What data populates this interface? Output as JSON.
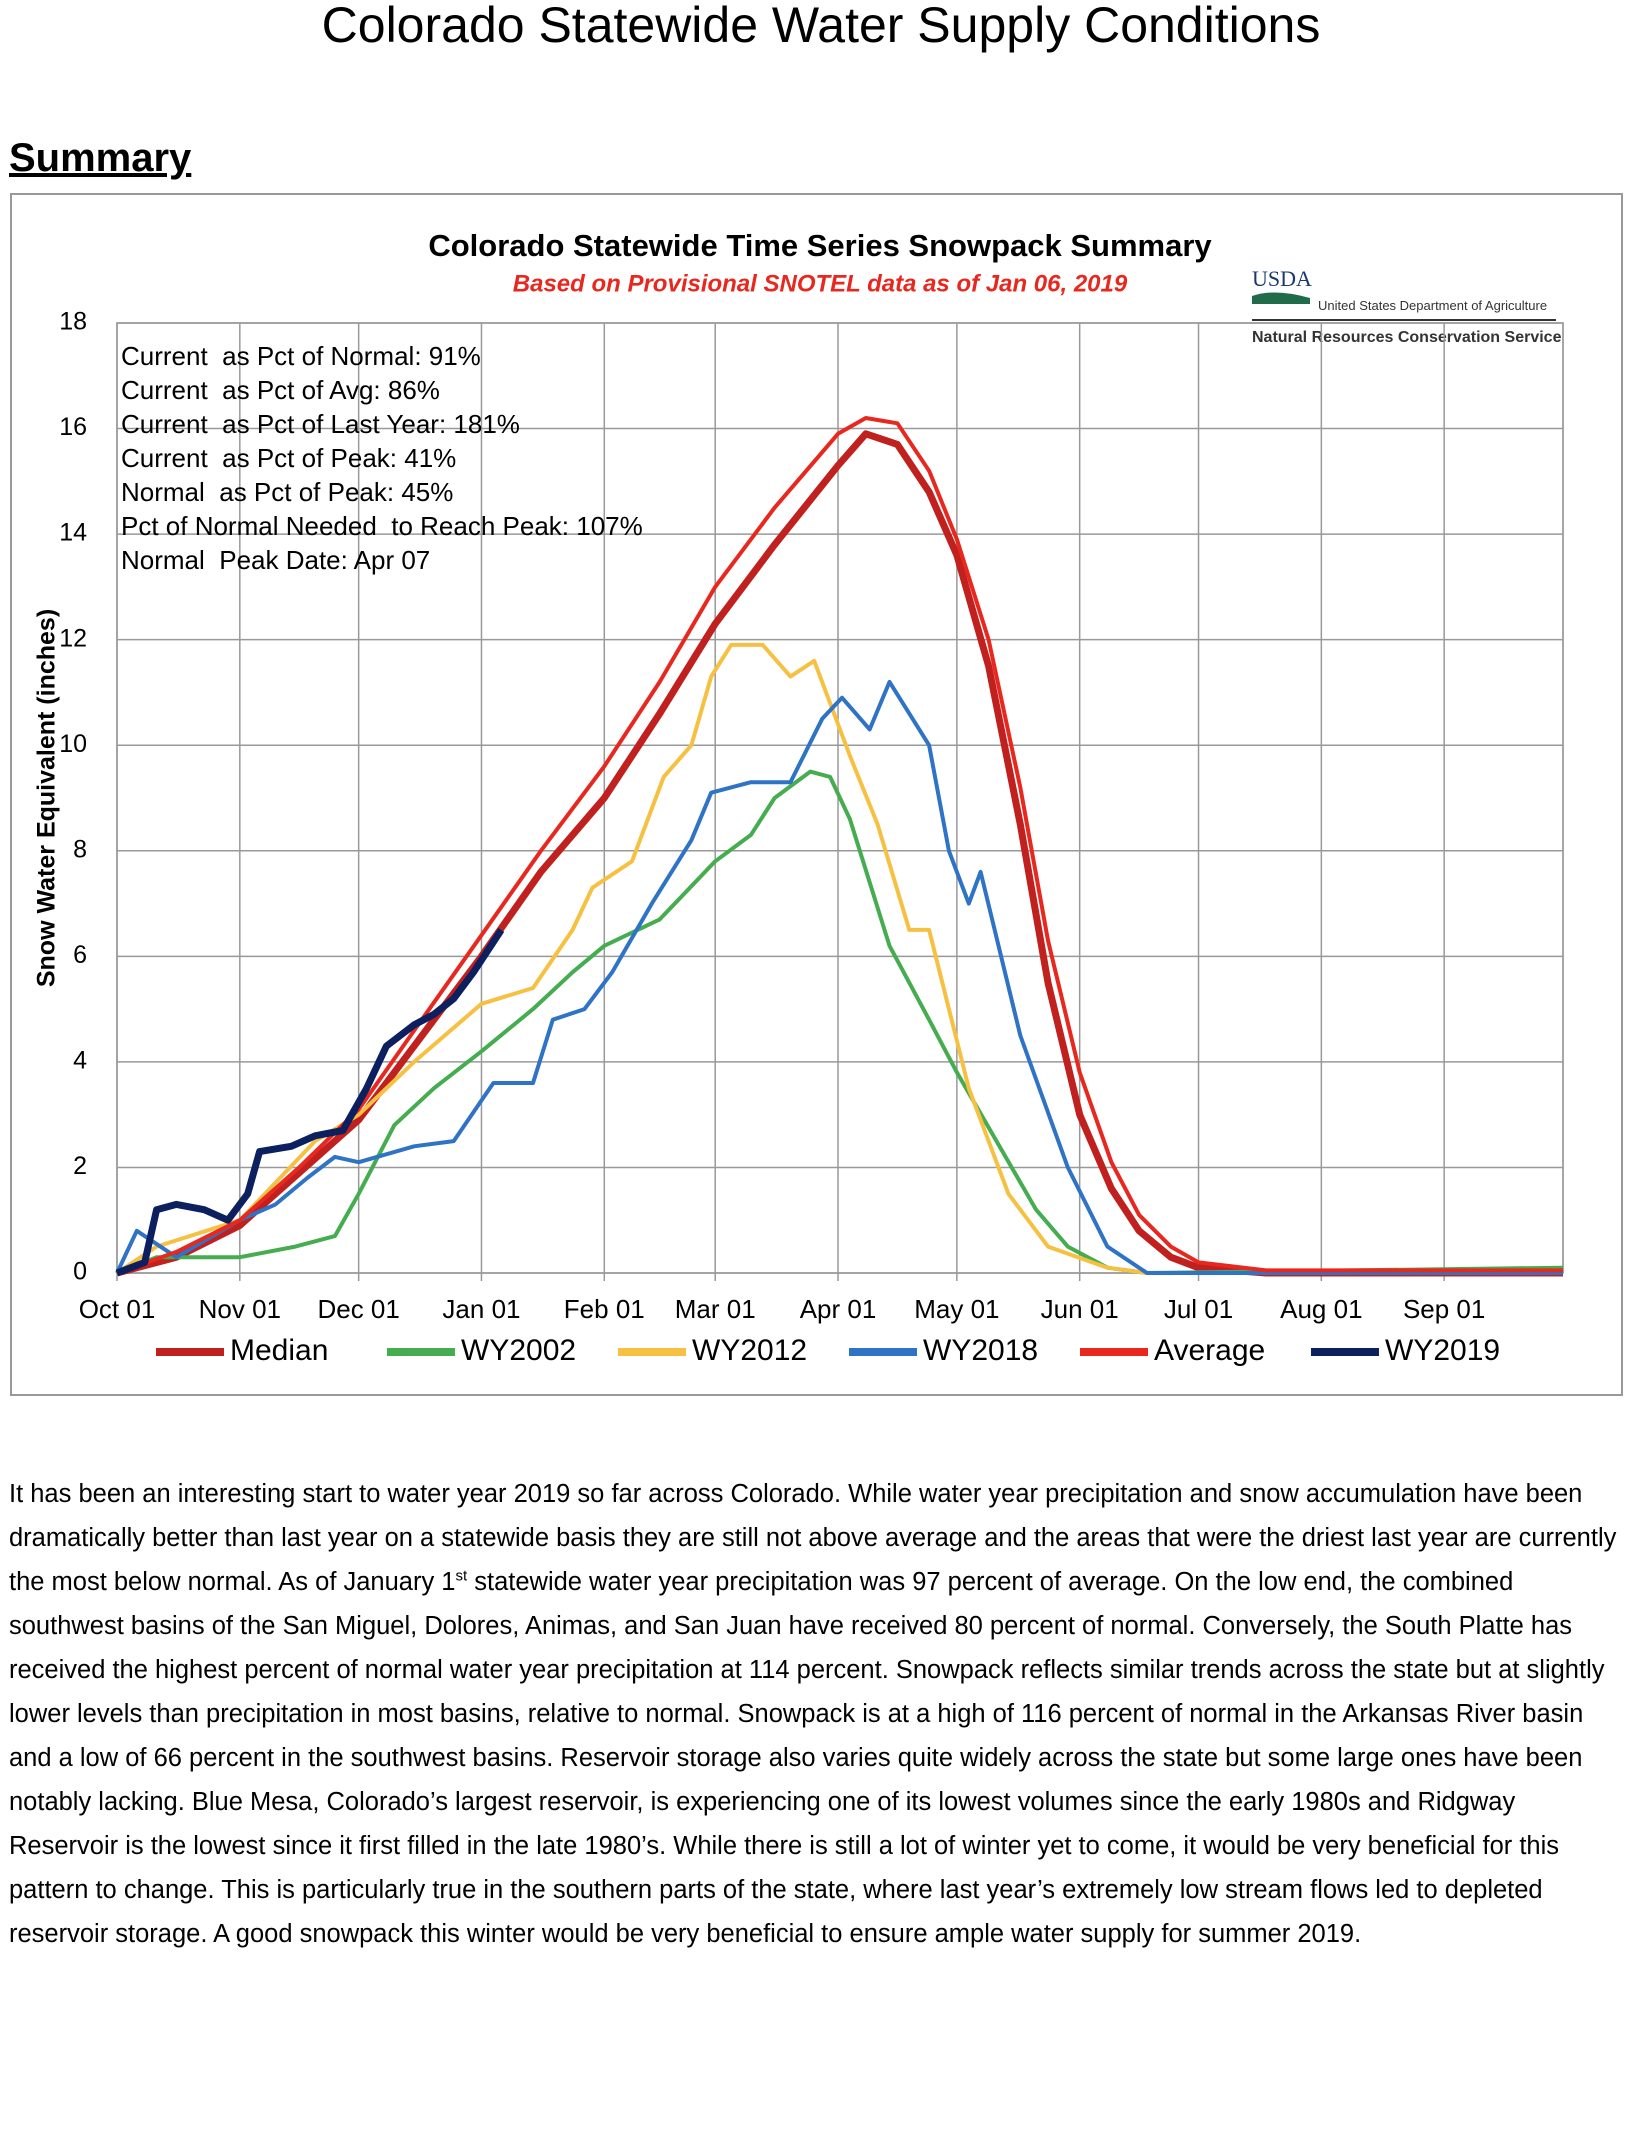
{
  "header": {
    "title": "Colorado Statewide Water Supply Conditions",
    "section": "Summary"
  },
  "chart_data": {
    "type": "line",
    "title": "Colorado Statewide Time Series Snowpack Summary",
    "subtitle": "Based on Provisional SNOTEL data as of Jan 06, 2019",
    "ylabel": "Snow Water Equivalent (inches)",
    "logo": {
      "mark": "USDA",
      "agency": "United States Department of Agriculture",
      "service": "Natural Resources Conservation Service"
    },
    "stats": [
      "Current  as Pct of Normal: 91%",
      "Current  as Pct of Avg: 86%",
      "Current  as Pct of Last Year: 181%",
      "Current  as Pct of Peak: 41%",
      "Normal  as Pct of Peak: 45%",
      "Pct of Normal Needed  to Reach Peak: 107%",
      "Normal  Peak Date: Apr 07"
    ],
    "xlim": [
      0,
      365
    ],
    "ylim": [
      0,
      18
    ],
    "xticks": [
      {
        "value": 0,
        "label": "Oct 01"
      },
      {
        "value": 31,
        "label": "Nov 01"
      },
      {
        "value": 61,
        "label": "Dec 01"
      },
      {
        "value": 92,
        "label": "Jan 01"
      },
      {
        "value": 123,
        "label": "Feb 01"
      },
      {
        "value": 151,
        "label": "Mar 01"
      },
      {
        "value": 182,
        "label": "Apr 01"
      },
      {
        "value": 212,
        "label": "May 01"
      },
      {
        "value": 243,
        "label": "Jun 01"
      },
      {
        "value": 273,
        "label": "Jul 01"
      },
      {
        "value": 304,
        "label": "Aug 01"
      },
      {
        "value": 335,
        "label": "Sep 01"
      }
    ],
    "yticks": [
      0,
      2,
      4,
      6,
      8,
      10,
      12,
      14,
      16,
      18
    ],
    "grid": true,
    "series": [
      {
        "name": "Median",
        "color": "#c0201e",
        "width": 7,
        "x": [
          0,
          15,
          31,
          46,
          61,
          76,
          92,
          107,
          123,
          137,
          151,
          166,
          182,
          189,
          197,
          205,
          212,
          220,
          228,
          235,
          243,
          251,
          258,
          266,
          273,
          290,
          365
        ],
        "values": [
          0,
          0.3,
          0.9,
          1.9,
          2.9,
          4.4,
          6.0,
          7.6,
          9.0,
          10.6,
          12.3,
          13.8,
          15.3,
          15.9,
          15.7,
          14.8,
          13.6,
          11.5,
          8.5,
          5.5,
          3.0,
          1.6,
          0.8,
          0.3,
          0.1,
          0,
          0
        ]
      },
      {
        "name": "WY2002",
        "color": "#45ad4f",
        "width": 4,
        "x": [
          0,
          10,
          31,
          45,
          55,
          61,
          70,
          80,
          92,
          105,
          115,
          123,
          137,
          151,
          160,
          166,
          175,
          180,
          185,
          195,
          205,
          212,
          222,
          232,
          240,
          250,
          260,
          365
        ],
        "values": [
          0,
          0.3,
          0.3,
          0.5,
          0.7,
          1.5,
          2.8,
          3.5,
          4.2,
          5.0,
          5.7,
          6.2,
          6.7,
          7.8,
          8.3,
          9.0,
          9.5,
          9.4,
          8.6,
          6.2,
          4.8,
          3.8,
          2.5,
          1.2,
          0.5,
          0.1,
          0,
          0.1
        ]
      },
      {
        "name": "WY2012",
        "color": "#f6c143",
        "width": 4,
        "x": [
          0,
          10,
          31,
          50,
          61,
          75,
          92,
          105,
          115,
          120,
          130,
          138,
          145,
          150,
          155,
          163,
          170,
          176,
          185,
          192,
          200,
          205,
          215,
          225,
          235,
          250,
          260,
          365
        ],
        "values": [
          0,
          0.5,
          1.0,
          2.5,
          3.0,
          4.0,
          5.1,
          5.4,
          6.5,
          7.3,
          7.8,
          9.4,
          10.0,
          11.3,
          11.9,
          11.9,
          11.3,
          11.6,
          9.8,
          8.5,
          6.5,
          6.5,
          3.5,
          1.5,
          0.5,
          0.1,
          0,
          0
        ]
      },
      {
        "name": "WY2018",
        "color": "#2f73c6",
        "width": 4,
        "x": [
          0,
          5,
          15,
          31,
          40,
          48,
          55,
          61,
          75,
          85,
          95,
          105,
          110,
          118,
          125,
          135,
          145,
          150,
          160,
          170,
          178,
          183,
          190,
          195,
          205,
          210,
          215,
          218,
          228,
          240,
          250,
          260,
          365
        ],
        "values": [
          0,
          0.8,
          0.3,
          1.0,
          1.3,
          1.8,
          2.2,
          2.1,
          2.4,
          2.5,
          3.6,
          3.6,
          4.8,
          5.0,
          5.7,
          7.0,
          8.2,
          9.1,
          9.3,
          9.3,
          10.5,
          10.9,
          10.3,
          11.2,
          10.0,
          8.0,
          7.0,
          7.6,
          4.5,
          2.0,
          0.5,
          0,
          0
        ]
      },
      {
        "name": "Average",
        "color": "#e8281f",
        "width": 4,
        "x": [
          0,
          15,
          31,
          46,
          61,
          76,
          92,
          107,
          123,
          137,
          151,
          166,
          182,
          189,
          197,
          205,
          212,
          220,
          228,
          235,
          243,
          251,
          258,
          266,
          273,
          290,
          365
        ],
        "values": [
          0,
          0.4,
          1.0,
          2.0,
          3.1,
          4.7,
          6.4,
          8.0,
          9.6,
          11.2,
          13.0,
          14.5,
          15.9,
          16.2,
          16.1,
          15.2,
          13.9,
          12.0,
          9.2,
          6.3,
          3.8,
          2.1,
          1.1,
          0.5,
          0.2,
          0.05,
          0.05
        ]
      },
      {
        "name": "WY2019",
        "color": "#0c1f5e",
        "width": 7,
        "x": [
          0,
          7,
          10,
          15,
          22,
          28,
          33,
          36,
          44,
          50,
          57,
          63,
          68,
          75,
          80,
          85,
          90,
          97
        ],
        "values": [
          0,
          0.2,
          1.2,
          1.3,
          1.2,
          1.0,
          1.5,
          2.3,
          2.4,
          2.6,
          2.7,
          3.5,
          4.3,
          4.7,
          4.9,
          5.2,
          5.7,
          6.5
        ]
      }
    ]
  },
  "paragraph": [
    "It has been an interesting start to water year 2019 so far across Colorado. While water year precipitation and snow accumulation have been dramatically better than last year on a statewide basis they are still not above average and the areas that were the driest last year are currently the most below normal. As of January 1",
    "st",
    " statewide water year precipitation was 97 percent of average. On the low end, the combined southwest basins of the San Miguel, Dolores, Animas, and San Juan have received 80 percent of normal. Conversely, the South Platte has received the highest percent of normal water year precipitation at 114 percent. Snowpack reflects similar trends across the state but at slightly lower levels than precipitation in most basins, relative to normal. Snowpack is at a high of 116 percent of normal in the Arkansas River basin and a low of 66 percent in the southwest basins. Reservoir storage also varies quite widely across the state but some large ones have been notably lacking. Blue Mesa, Colorado’s largest reservoir, is experiencing one of its lowest volumes since the early 1980s and Ridgway Reservoir is the lowest since it first filled in the late 1980’s. While there is still a lot of winter yet to come, it would be very beneficial for this pattern to change. This is particularly true in the southern parts of the state, where last year’s extremely low stream flows led to depleted reservoir storage. A good snowpack this winter would be very beneficial to ensure ample water supply for summer 2019."
  ]
}
